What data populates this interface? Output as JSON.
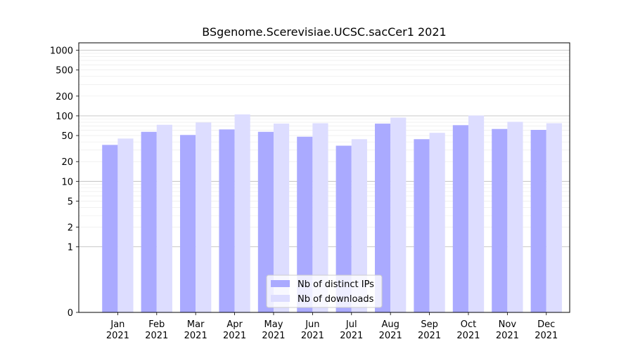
{
  "chart_data": {
    "type": "bar",
    "title": "BSgenome.Scerevisiae.UCSC.sacCer1 2021",
    "xlabel": "",
    "ylabel": "",
    "yscale": "symlog",
    "ylim": [
      0,
      1300
    ],
    "yticks": [
      0,
      1,
      2,
      5,
      10,
      20,
      50,
      100,
      200,
      500,
      1000
    ],
    "ytick_labels": [
      "0",
      "1",
      "2",
      "5",
      "10",
      "20",
      "50",
      "100",
      "200",
      "500",
      "1000"
    ],
    "categories": [
      {
        "month": "Jan",
        "year": "2021"
      },
      {
        "month": "Feb",
        "year": "2021"
      },
      {
        "month": "Mar",
        "year": "2021"
      },
      {
        "month": "Apr",
        "year": "2021"
      },
      {
        "month": "May",
        "year": "2021"
      },
      {
        "month": "Jun",
        "year": "2021"
      },
      {
        "month": "Jul",
        "year": "2021"
      },
      {
        "month": "Aug",
        "year": "2021"
      },
      {
        "month": "Sep",
        "year": "2021"
      },
      {
        "month": "Oct",
        "year": "2021"
      },
      {
        "month": "Nov",
        "year": "2021"
      },
      {
        "month": "Dec",
        "year": "2021"
      }
    ],
    "series": [
      {
        "name": "Nb of distinct IPs",
        "color": "#aaaaff",
        "values": [
          36,
          57,
          51,
          62,
          57,
          48,
          35,
          76,
          44,
          72,
          63,
          61
        ]
      },
      {
        "name": "Nb of downloads",
        "color": "#ddddff",
        "values": [
          45,
          73,
          79,
          105,
          76,
          77,
          44,
          94,
          55,
          101,
          81,
          77
        ]
      }
    ],
    "legend_position": "bottom-center",
    "grid": true
  }
}
